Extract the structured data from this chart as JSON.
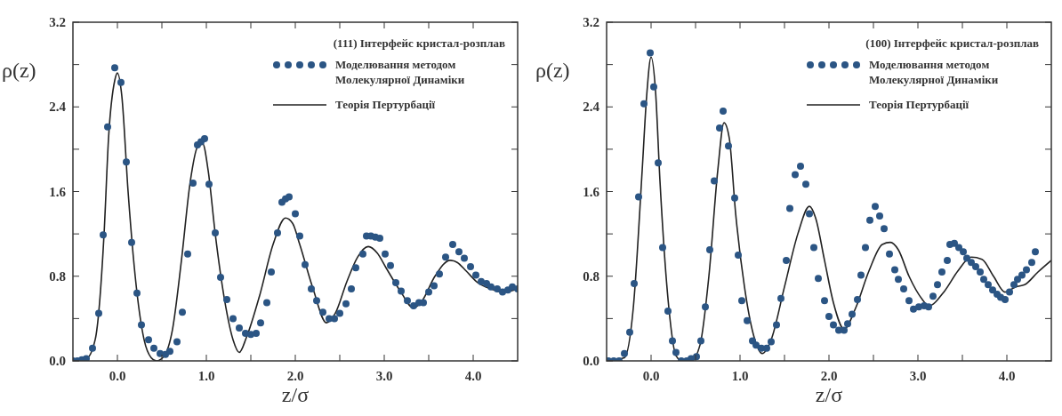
{
  "chart_data": [
    {
      "type": "scatter",
      "legend_title": "(111) Інтерфейс кристал-розплав",
      "xlabel": "z/σ",
      "ylabel": "ρ(z)",
      "xlim": [
        -0.5,
        4.5
      ],
      "ylim": [
        0,
        3.2
      ],
      "grid": false,
      "legend": "top right",
      "xticks": [
        {
          "value": 0,
          "label": "0.0"
        },
        {
          "value": 0.5,
          "label": null
        },
        {
          "value": 1,
          "label": "1.0"
        },
        {
          "value": 1.5,
          "label": null
        },
        {
          "value": 2,
          "label": "2.0"
        },
        {
          "value": 2.5,
          "label": null
        },
        {
          "value": 3,
          "label": "3.0"
        },
        {
          "value": 3.5,
          "label": null
        },
        {
          "value": 4,
          "label": "4.0"
        }
      ],
      "yticks": [
        {
          "value": 0,
          "label": "0.0"
        },
        {
          "value": 0.4,
          "label": null
        },
        {
          "value": 0.8,
          "label": "0.8"
        },
        {
          "value": 1.2,
          "label": null
        },
        {
          "value": 1.6,
          "label": "1.6"
        },
        {
          "value": 2,
          "label": null
        },
        {
          "value": 2.4,
          "label": "2.4"
        },
        {
          "value": 2.8,
          "label": null
        },
        {
          "value": 3.2,
          "label": "3.2"
        }
      ],
      "series": [
        {
          "name": "Моделювання методом Молекулярної Динаміки",
          "marker": "circle",
          "color": "#2b5584",
          "x": [
            -0.5,
            -0.45,
            -0.4,
            -0.35,
            -0.28,
            -0.21,
            -0.16,
            -0.11,
            -0.03,
            0.04,
            0.1,
            0.16,
            0.22,
            0.27,
            0.35,
            0.41,
            0.48,
            0.54,
            0.59,
            0.67,
            0.73,
            0.79,
            0.85,
            0.9,
            0.94,
            0.98,
            1.03,
            1.1,
            1.16,
            1.23,
            1.3,
            1.37,
            1.44,
            1.5,
            1.56,
            1.61,
            1.68,
            1.73,
            1.8,
            1.85,
            1.89,
            1.93,
            2,
            2.05,
            2.11,
            2.18,
            2.24,
            2.31,
            2.38,
            2.44,
            2.5,
            2.57,
            2.63,
            2.68,
            2.76,
            2.8,
            2.85,
            2.9,
            2.95,
            3.01,
            3.07,
            3.13,
            3.19,
            3.26,
            3.33,
            3.39,
            3.44,
            3.5,
            3.56,
            3.62,
            3.69,
            3.77,
            3.84,
            3.9,
            3.97,
            4.03,
            4.09,
            4.15,
            4.2,
            4.27,
            4.33,
            4.39,
            4.44,
            4.5
          ],
          "values": [
            0,
            0,
            0.01,
            0.02,
            0.12,
            0.45,
            1.19,
            2.21,
            2.77,
            2.63,
            1.88,
            1.12,
            0.64,
            0.34,
            0.2,
            0.12,
            0.07,
            0.06,
            0.09,
            0.18,
            0.46,
            1.01,
            1.68,
            2.04,
            2.07,
            2.1,
            1.67,
            1.21,
            0.79,
            0.58,
            0.4,
            0.31,
            0.26,
            0.25,
            0.26,
            0.36,
            0.55,
            0.84,
            1.21,
            1.5,
            1.53,
            1.55,
            1.39,
            1.18,
            0.91,
            0.68,
            0.57,
            0.46,
            0.4,
            0.4,
            0.45,
            0.54,
            0.68,
            0.88,
            1.01,
            1.18,
            1.18,
            1.17,
            1.16,
            1.01,
            0.9,
            0.74,
            0.66,
            0.57,
            0.52,
            0.55,
            0.55,
            0.65,
            0.71,
            0.82,
            0.98,
            1.1,
            1.03,
            0.97,
            0.89,
            0.81,
            0.75,
            0.73,
            0.7,
            0.68,
            0.65,
            0.67,
            0.7,
            0.68
          ]
        },
        {
          "name": "Теорія Пертурбації",
          "type": "line",
          "line_style": "solid",
          "color": "#222222",
          "x": [
            -0.5,
            -0.35,
            -0.25,
            -0.15,
            -0.1,
            -0.03,
            0,
            0.05,
            0.12,
            0.2,
            0.3,
            0.38,
            0.44,
            0.52,
            0.62,
            0.72,
            0.82,
            0.9,
            0.96,
            1.02,
            1.1,
            1.2,
            1.3,
            1.37,
            1.45,
            1.6,
            1.75,
            1.89,
            1.97,
            2.05,
            2.2,
            2.35,
            2.45,
            2.58,
            2.7,
            2.82,
            2.92,
            3.02,
            3.18,
            3.33,
            3.42,
            3.57,
            3.74,
            3.82,
            3.92,
            4.05,
            4.2,
            4.33,
            4.5
          ],
          "values": [
            0,
            0.02,
            0.2,
            1.2,
            2.1,
            2.65,
            2.72,
            2.5,
            1.6,
            0.8,
            0.2,
            0.03,
            0,
            0.04,
            0.3,
            0.95,
            1.7,
            2.02,
            2.05,
            1.8,
            1.2,
            0.6,
            0.2,
            0.08,
            0.22,
            0.62,
            1.1,
            1.35,
            1.3,
            1.1,
            0.68,
            0.36,
            0.45,
            0.75,
            0.98,
            1.08,
            1.02,
            0.88,
            0.66,
            0.5,
            0.56,
            0.8,
            0.95,
            0.93,
            0.85,
            0.74,
            0.68,
            0.65,
            0.68
          ]
        }
      ]
    },
    {
      "type": "scatter",
      "legend_title": "(100) Інтерфейс кристал-розплав",
      "xlabel": "z/σ",
      "ylabel": "ρ(z)",
      "xlim": [
        -0.5,
        4.5
      ],
      "ylim": [
        0,
        3.2
      ],
      "grid": false,
      "legend": "top right",
      "xticks": [
        {
          "value": 0,
          "label": "0.0"
        },
        {
          "value": 0.5,
          "label": null
        },
        {
          "value": 1,
          "label": "1.0"
        },
        {
          "value": 1.5,
          "label": null
        },
        {
          "value": 2,
          "label": "2.0"
        },
        {
          "value": 2.5,
          "label": null
        },
        {
          "value": 3,
          "label": "3.0"
        },
        {
          "value": 3.5,
          "label": null
        },
        {
          "value": 4,
          "label": "4.0"
        }
      ],
      "yticks": [
        {
          "value": 0,
          "label": "0.0"
        },
        {
          "value": 0.4,
          "label": null
        },
        {
          "value": 0.8,
          "label": "0.8"
        },
        {
          "value": 1.2,
          "label": null
        },
        {
          "value": 1.6,
          "label": "1.6"
        },
        {
          "value": 2,
          "label": null
        },
        {
          "value": 2.4,
          "label": "2.4"
        },
        {
          "value": 2.8,
          "label": null
        },
        {
          "value": 3.2,
          "label": "3.2"
        }
      ],
      "series": [
        {
          "name": "Моделювання методом Молекулярної Динаміки",
          "marker": "circle",
          "color": "#2b5584",
          "x": [
            -0.48,
            -0.42,
            -0.36,
            -0.3,
            -0.24,
            -0.19,
            -0.14,
            -0.08,
            -0.01,
            0.03,
            0.08,
            0.13,
            0.19,
            0.24,
            0.28,
            0.34,
            0.4,
            0.45,
            0.51,
            0.56,
            0.61,
            0.66,
            0.71,
            0.77,
            0.81,
            0.87,
            0.94,
            0.98,
            1.02,
            1.08,
            1.14,
            1.18,
            1.24,
            1.3,
            1.35,
            1.41,
            1.46,
            1.52,
            1.56,
            1.62,
            1.68,
            1.74,
            1.78,
            1.83,
            1.88,
            1.95,
            2,
            2.05,
            2.11,
            2.17,
            2.21,
            2.26,
            2.32,
            2.36,
            2.41,
            2.46,
            2.52,
            2.57,
            2.62,
            2.68,
            2.74,
            2.78,
            2.84,
            2.9,
            2.95,
            3.01,
            3.07,
            3.12,
            3.17,
            3.22,
            3.27,
            3.33,
            3.36,
            3.41,
            3.46,
            3.51,
            3.55,
            3.6,
            3.65,
            3.7,
            3.74,
            3.79,
            3.84,
            3.89,
            3.93,
            3.98,
            4.03,
            4.08,
            4.12,
            4.17,
            4.22,
            4.28,
            4.32
          ],
          "values": [
            0,
            0,
            0,
            0.07,
            0.27,
            0.73,
            1.55,
            2.43,
            2.91,
            2.59,
            1.87,
            1.07,
            0.47,
            0.19,
            0.08,
            0,
            0,
            0.02,
            0.04,
            0.19,
            0.51,
            1.05,
            1.7,
            2.2,
            2.36,
            2.03,
            1.54,
            1,
            0.57,
            0.38,
            0.19,
            0.15,
            0.12,
            0.12,
            0.18,
            0.34,
            0.59,
            0.95,
            1.44,
            1.76,
            1.84,
            1.67,
            1.39,
            1.07,
            0.78,
            0.57,
            0.42,
            0.34,
            0.29,
            0.29,
            0.35,
            0.44,
            0.58,
            0.81,
            1.07,
            1.33,
            1.46,
            1.37,
            1.25,
            1.01,
            0.86,
            0.77,
            0.68,
            0.57,
            0.49,
            0.51,
            0.52,
            0.51,
            0.61,
            0.72,
            0.84,
            0.95,
            1.1,
            1.11,
            1.07,
            1.03,
            0.97,
            0.93,
            0.89,
            0.84,
            0.77,
            0.72,
            0.67,
            0.63,
            0.6,
            0.58,
            0.65,
            0.72,
            0.77,
            0.81,
            0.86,
            0.93,
            1.03
          ]
        },
        {
          "name": "Теорія Пертурбації",
          "type": "line",
          "line_style": "solid",
          "color": "#222222",
          "x": [
            -0.5,
            -0.3,
            -0.2,
            -0.1,
            -0.05,
            0,
            0.05,
            0.1,
            0.2,
            0.28,
            0.35,
            0.45,
            0.55,
            0.65,
            0.75,
            0.82,
            0.88,
            0.95,
            1.05,
            1.15,
            1.25,
            1.35,
            1.5,
            1.65,
            1.78,
            1.85,
            1.95,
            2.05,
            2.17,
            2.3,
            2.45,
            2.6,
            2.69,
            2.78,
            2.9,
            3.05,
            3.12,
            3.3,
            3.45,
            3.6,
            3.72,
            3.85,
            3.98,
            4.1,
            4.2,
            4.35,
            4.5
          ],
          "values": [
            0,
            0.03,
            0.5,
            1.8,
            2.5,
            2.87,
            2.55,
            1.7,
            0.5,
            0.05,
            0,
            0,
            0.15,
            0.8,
            1.8,
            2.25,
            2.1,
            1.4,
            0.7,
            0.25,
            0.07,
            0.2,
            0.7,
            1.2,
            1.46,
            1.35,
            0.95,
            0.55,
            0.3,
            0.5,
            0.85,
            1.1,
            1.12,
            1.05,
            0.8,
            0.58,
            0.52,
            0.66,
            0.85,
            0.98,
            0.96,
            0.8,
            0.65,
            0.7,
            0.72,
            0.84,
            0.95
          ]
        }
      ]
    }
  ]
}
